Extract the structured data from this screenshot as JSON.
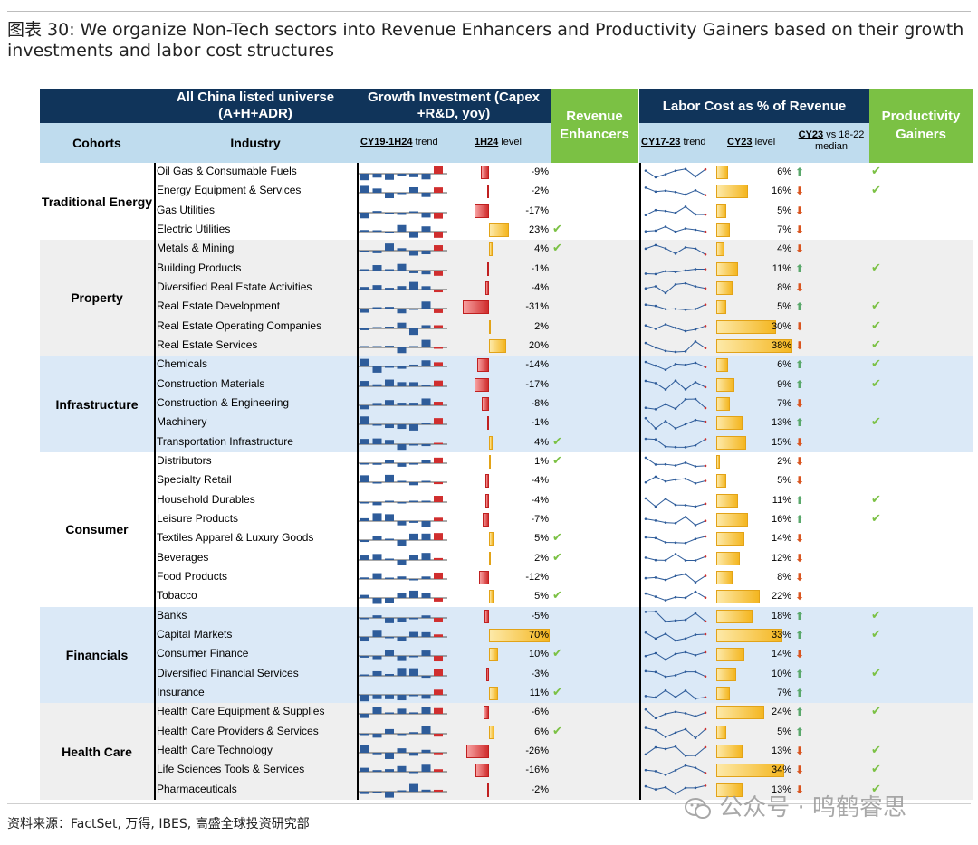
{
  "title": "图表 30: We organize Non-Tech sectors into Revenue Enhancers and Productivity Gainers based on their growth investments and labor cost structures",
  "header": {
    "universe": "All China listed universe (A+H+ADR)",
    "growth_investment": "Growth Investment (Capex +R&D, yoy)",
    "revenue_enhancers": "Revenue Enhancers",
    "labor_cost": "Labor Cost as % of Revenue",
    "productivity_gainers": "Productivity Gainers",
    "cohorts": "Cohorts",
    "industry": "Industry",
    "gi_trend_u": "CY19-1H24",
    "gi_trend_rest": " trend",
    "gi_level_u": "1H24",
    "gi_level_rest": " level",
    "lc_trend_u": "CY17-23",
    "lc_trend_rest": " trend",
    "lc_level_u": "CY23",
    "lc_level_rest": " level",
    "lc_median_u": "CY23",
    "lc_median_rest": " vs 18-22 median"
  },
  "colors": {
    "navy": "#10345a",
    "lightblue": "#bfdcee",
    "green": "#7bc144",
    "band_grey": "#efefef",
    "band_blue": "#dbe9f7",
    "arrow_up": "#5aa86b",
    "arrow_down": "#d9541e",
    "bar_blue": "#2e5c9a",
    "bar_red": "#d02e2e"
  },
  "cohorts": [
    {
      "name": "Traditional Energy",
      "band": "white",
      "start": 0,
      "count": 4
    },
    {
      "name": "Property",
      "band": "grey",
      "start": 4,
      "count": 6
    },
    {
      "name": "Infrastructure",
      "band": "blue",
      "start": 10,
      "count": 5
    },
    {
      "name": "Consumer",
      "band": "white",
      "start": 15,
      "count": 8
    },
    {
      "name": "Financials",
      "band": "blue",
      "start": 23,
      "count": 5
    },
    {
      "name": "Health Care",
      "band": "grey",
      "start": 28,
      "count": 5
    }
  ],
  "rows": [
    {
      "industry": "Oil Gas & Consumable Fuels",
      "gi_level": "-9%",
      "gi_value": -9,
      "rev_enh": false,
      "lc_level": "6%",
      "lc_value": 6,
      "lc_dir": "up",
      "prod_gain": true
    },
    {
      "industry": "Energy Equipment & Services",
      "gi_level": "-2%",
      "gi_value": -2,
      "rev_enh": false,
      "lc_level": "16%",
      "lc_value": 16,
      "lc_dir": "down",
      "prod_gain": true
    },
    {
      "industry": "Gas Utilities",
      "gi_level": "-17%",
      "gi_value": -17,
      "rev_enh": false,
      "lc_level": "5%",
      "lc_value": 5,
      "lc_dir": "down",
      "prod_gain": false
    },
    {
      "industry": "Electric Utilities",
      "gi_level": "23%",
      "gi_value": 23,
      "rev_enh": true,
      "lc_level": "7%",
      "lc_value": 7,
      "lc_dir": "down",
      "prod_gain": false
    },
    {
      "industry": "Metals & Mining",
      "gi_level": "4%",
      "gi_value": 4,
      "rev_enh": true,
      "lc_level": "4%",
      "lc_value": 4,
      "lc_dir": "down",
      "prod_gain": false
    },
    {
      "industry": "Building Products",
      "gi_level": "-1%",
      "gi_value": -1,
      "rev_enh": false,
      "lc_level": "11%",
      "lc_value": 11,
      "lc_dir": "up",
      "prod_gain": true
    },
    {
      "industry": "Diversified Real Estate Activities",
      "gi_level": "-4%",
      "gi_value": -4,
      "rev_enh": false,
      "lc_level": "8%",
      "lc_value": 8,
      "lc_dir": "down",
      "prod_gain": false
    },
    {
      "industry": "Real Estate Development",
      "gi_level": "-31%",
      "gi_value": -31,
      "rev_enh": false,
      "lc_level": "5%",
      "lc_value": 5,
      "lc_dir": "up",
      "prod_gain": true
    },
    {
      "industry": "Real Estate Operating Companies",
      "gi_level": "2%",
      "gi_value": 2,
      "rev_enh": false,
      "lc_level": "30%",
      "lc_value": 30,
      "lc_dir": "down",
      "prod_gain": true
    },
    {
      "industry": "Real Estate Services",
      "gi_level": "20%",
      "gi_value": 20,
      "rev_enh": false,
      "lc_level": "38%",
      "lc_value": 38,
      "lc_dir": "down",
      "prod_gain": true
    },
    {
      "industry": "Chemicals",
      "gi_level": "-14%",
      "gi_value": -14,
      "rev_enh": false,
      "lc_level": "6%",
      "lc_value": 6,
      "lc_dir": "up",
      "prod_gain": true
    },
    {
      "industry": "Construction Materials",
      "gi_level": "-17%",
      "gi_value": -17,
      "rev_enh": false,
      "lc_level": "9%",
      "lc_value": 9,
      "lc_dir": "up",
      "prod_gain": true
    },
    {
      "industry": "Construction & Engineering",
      "gi_level": "-8%",
      "gi_value": -8,
      "rev_enh": false,
      "lc_level": "7%",
      "lc_value": 7,
      "lc_dir": "down",
      "prod_gain": false
    },
    {
      "industry": "Machinery",
      "gi_level": "-1%",
      "gi_value": -1,
      "rev_enh": false,
      "lc_level": "13%",
      "lc_value": 13,
      "lc_dir": "up",
      "prod_gain": true
    },
    {
      "industry": "Transportation Infrastructure",
      "gi_level": "4%",
      "gi_value": 4,
      "rev_enh": true,
      "lc_level": "15%",
      "lc_value": 15,
      "lc_dir": "down",
      "prod_gain": false
    },
    {
      "industry": "Distributors",
      "gi_level": "1%",
      "gi_value": 1,
      "rev_enh": true,
      "lc_level": "2%",
      "lc_value": 2,
      "lc_dir": "down",
      "prod_gain": false
    },
    {
      "industry": "Specialty Retail",
      "gi_level": "-4%",
      "gi_value": -4,
      "rev_enh": false,
      "lc_level": "5%",
      "lc_value": 5,
      "lc_dir": "down",
      "prod_gain": false
    },
    {
      "industry": "Household Durables",
      "gi_level": "-4%",
      "gi_value": -4,
      "rev_enh": false,
      "lc_level": "11%",
      "lc_value": 11,
      "lc_dir": "up",
      "prod_gain": true
    },
    {
      "industry": "Leisure Products",
      "gi_level": "-7%",
      "gi_value": -7,
      "rev_enh": false,
      "lc_level": "16%",
      "lc_value": 16,
      "lc_dir": "up",
      "prod_gain": true
    },
    {
      "industry": "Textiles Apparel & Luxury Goods",
      "gi_level": "5%",
      "gi_value": 5,
      "rev_enh": true,
      "lc_level": "14%",
      "lc_value": 14,
      "lc_dir": "down",
      "prod_gain": false
    },
    {
      "industry": "Beverages",
      "gi_level": "2%",
      "gi_value": 2,
      "rev_enh": true,
      "lc_level": "12%",
      "lc_value": 12,
      "lc_dir": "down",
      "prod_gain": false
    },
    {
      "industry": "Food Products",
      "gi_level": "-12%",
      "gi_value": -12,
      "rev_enh": false,
      "lc_level": "8%",
      "lc_value": 8,
      "lc_dir": "down",
      "prod_gain": false
    },
    {
      "industry": "Tobacco",
      "gi_level": "5%",
      "gi_value": 5,
      "rev_enh": true,
      "lc_level": "22%",
      "lc_value": 22,
      "lc_dir": "down",
      "prod_gain": false
    },
    {
      "industry": "Banks",
      "gi_level": "-5%",
      "gi_value": -5,
      "rev_enh": false,
      "lc_level": "18%",
      "lc_value": 18,
      "lc_dir": "up",
      "prod_gain": true
    },
    {
      "industry": "Capital Markets",
      "gi_level": "70%",
      "gi_value": 70,
      "rev_enh": false,
      "lc_level": "33%",
      "lc_value": 33,
      "lc_dir": "up",
      "prod_gain": true
    },
    {
      "industry": "Consumer Finance",
      "gi_level": "10%",
      "gi_value": 10,
      "rev_enh": true,
      "lc_level": "14%",
      "lc_value": 14,
      "lc_dir": "down",
      "prod_gain": false
    },
    {
      "industry": "Diversified Financial Services",
      "gi_level": "-3%",
      "gi_value": -3,
      "rev_enh": false,
      "lc_level": "10%",
      "lc_value": 10,
      "lc_dir": "up",
      "prod_gain": true
    },
    {
      "industry": "Insurance",
      "gi_level": "11%",
      "gi_value": 11,
      "rev_enh": true,
      "lc_level": "7%",
      "lc_value": 7,
      "lc_dir": "up",
      "prod_gain": false
    },
    {
      "industry": "Health Care Equipment & Supplies",
      "gi_level": "-6%",
      "gi_value": -6,
      "rev_enh": false,
      "lc_level": "24%",
      "lc_value": 24,
      "lc_dir": "up",
      "prod_gain": true
    },
    {
      "industry": "Health Care Providers & Services",
      "gi_level": "6%",
      "gi_value": 6,
      "rev_enh": true,
      "lc_level": "5%",
      "lc_value": 5,
      "lc_dir": "up",
      "prod_gain": false
    },
    {
      "industry": "Health Care Technology",
      "gi_level": "-26%",
      "gi_value": -26,
      "rev_enh": false,
      "lc_level": "13%",
      "lc_value": 13,
      "lc_dir": "down",
      "prod_gain": true
    },
    {
      "industry": "Life Sciences Tools & Services",
      "gi_level": "-16%",
      "gi_value": -16,
      "rev_enh": false,
      "lc_level": "34%",
      "lc_value": 34,
      "lc_dir": "down",
      "prod_gain": true
    },
    {
      "industry": "Pharmaceuticals",
      "gi_level": "-2%",
      "gi_value": -2,
      "rev_enh": false,
      "lc_level": "13%",
      "lc_value": 13,
      "lc_dir": "down",
      "prod_gain": true
    }
  ],
  "source": "资料来源：FactSet, 万得, IBES, 高盛全球投资研究部",
  "watermark": "公众号 · 鸣鹤睿思",
  "icons": {
    "check": "check-icon",
    "up": "arrow-up-icon",
    "down": "arrow-down-icon",
    "wechat": "wechat-icon"
  }
}
